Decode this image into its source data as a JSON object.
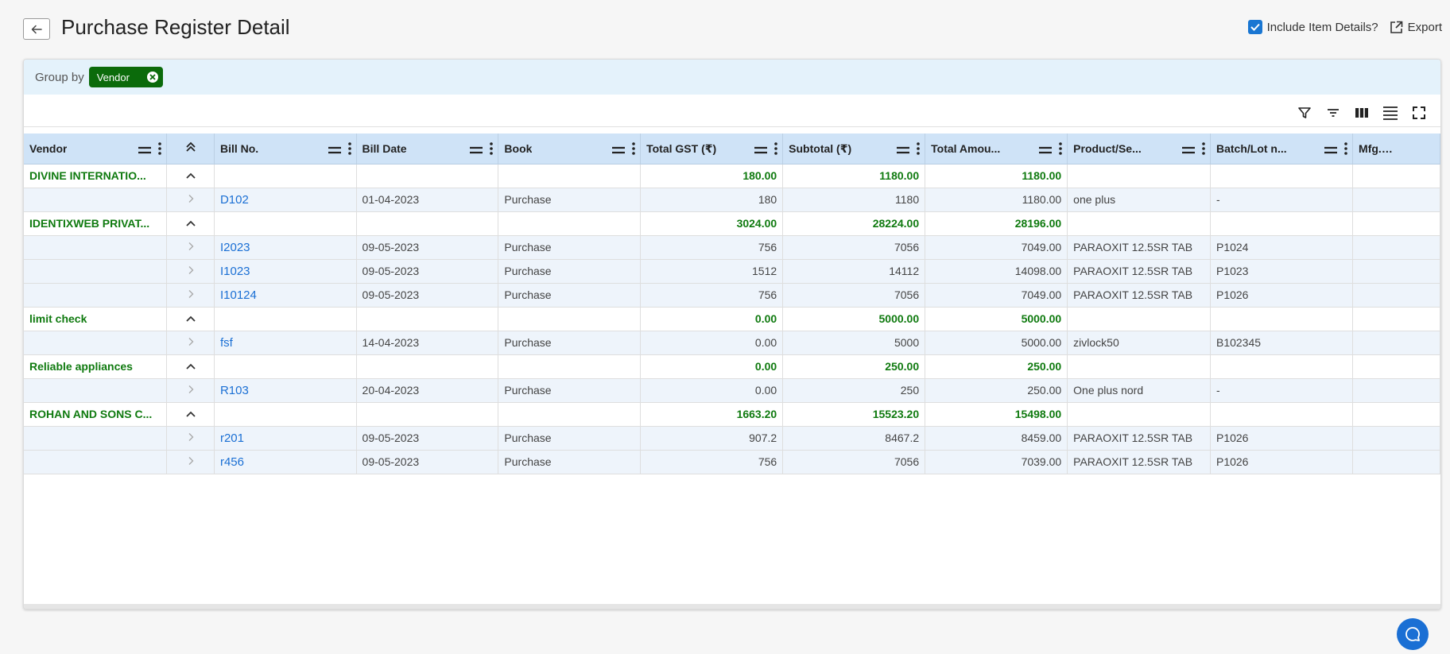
{
  "header": {
    "title": "Purchase Register Detail",
    "include_items_label": "Include Item Details?",
    "include_items_checked": true,
    "export_label": "Export"
  },
  "groupbar": {
    "label": "Group by",
    "chip": "Vendor"
  },
  "colors": {
    "accent": "#1976d2",
    "group_text": "#0f7a0f",
    "link": "#1a6fd4",
    "header_bg": "#cfe3f7",
    "chip_bg": "#0b6b0b"
  },
  "columns": [
    "Vendor",
    "",
    "Bill No.",
    "Bill Date",
    "Book",
    "Total GST (₹)",
    "Subtotal (₹)",
    "Total Amou...",
    "Product/Se...",
    "Batch/Lot n...",
    "Mfg. Comp..."
  ],
  "groups": [
    {
      "vendor": "DIVINE INTERNATIO...",
      "gst": "180.00",
      "subtotal": "1180.00",
      "total": "1180.00",
      "rows": [
        {
          "bill": "D102",
          "date": "01-04-2023",
          "book": "Purchase",
          "gst": "180",
          "subtotal": "1180",
          "total": "1180.00",
          "product": "one plus",
          "batch": "-"
        }
      ]
    },
    {
      "vendor": "IDENTIXWEB PRIVAT...",
      "gst": "3024.00",
      "subtotal": "28224.00",
      "total": "28196.00",
      "rows": [
        {
          "bill": "I2023",
          "date": "09-05-2023",
          "book": "Purchase",
          "gst": "756",
          "subtotal": "7056",
          "total": "7049.00",
          "product": "PARAOXIT 12.5SR TAB",
          "batch": "P1024"
        },
        {
          "bill": "I1023",
          "date": "09-05-2023",
          "book": "Purchase",
          "gst": "1512",
          "subtotal": "14112",
          "total": "14098.00",
          "product": "PARAOXIT 12.5SR TAB",
          "batch": "P1023"
        },
        {
          "bill": "I10124",
          "date": "09-05-2023",
          "book": "Purchase",
          "gst": "756",
          "subtotal": "7056",
          "total": "7049.00",
          "product": "PARAOXIT 12.5SR TAB",
          "batch": "P1026"
        }
      ]
    },
    {
      "vendor": "limit check",
      "gst": "0.00",
      "subtotal": "5000.00",
      "total": "5000.00",
      "rows": [
        {
          "bill": "fsf",
          "date": "14-04-2023",
          "book": "Purchase",
          "gst": "0.00",
          "subtotal": "5000",
          "total": "5000.00",
          "product": "zivlock50",
          "batch": "B102345"
        }
      ]
    },
    {
      "vendor": "Reliable appliances",
      "gst": "0.00",
      "subtotal": "250.00",
      "total": "250.00",
      "rows": [
        {
          "bill": "R103",
          "date": "20-04-2023",
          "book": "Purchase",
          "gst": "0.00",
          "subtotal": "250",
          "total": "250.00",
          "product": "One plus nord",
          "batch": "-"
        }
      ]
    },
    {
      "vendor": "ROHAN AND SONS C...",
      "gst": "1663.20",
      "subtotal": "15523.20",
      "total": "15498.00",
      "rows": [
        {
          "bill": "r201",
          "date": "09-05-2023",
          "book": "Purchase",
          "gst": "907.2",
          "subtotal": "8467.2",
          "total": "8459.00",
          "product": "PARAOXIT 12.5SR TAB",
          "batch": "P1026"
        },
        {
          "bill": "r456",
          "date": "09-05-2023",
          "book": "Purchase",
          "gst": "756",
          "subtotal": "7056",
          "total": "7039.00",
          "product": "PARAOXIT 12.5SR TAB",
          "batch": "P1026"
        }
      ]
    }
  ]
}
